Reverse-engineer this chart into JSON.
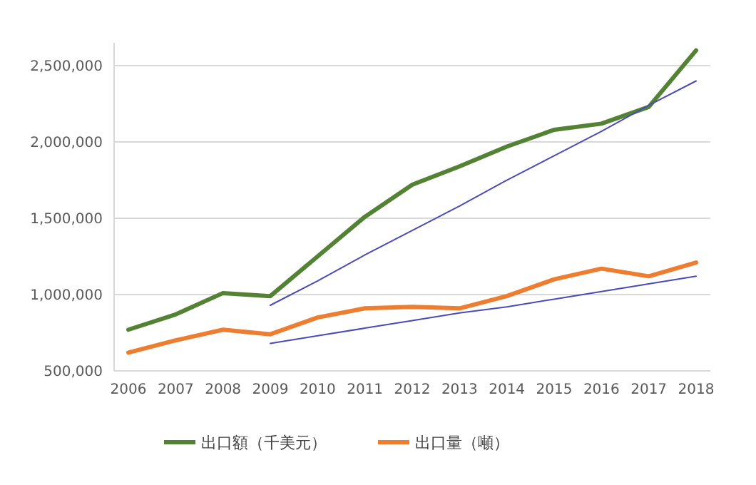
{
  "chart_data": {
    "type": "line",
    "categories": [
      "2006",
      "2007",
      "2008",
      "2009",
      "2010",
      "2011",
      "2012",
      "2013",
      "2014",
      "2015",
      "2016",
      "2017",
      "2018"
    ],
    "series": [
      {
        "name": "出口額（千美元）",
        "color": "#548235",
        "values": [
          770000,
          870000,
          1010000,
          990000,
          1250000,
          1510000,
          1720000,
          1840000,
          1970000,
          2080000,
          2120000,
          2230000,
          2600000
        ]
      },
      {
        "name": "出口量（噸）",
        "color": "#ed7d31",
        "values": [
          620000,
          700000,
          770000,
          740000,
          850000,
          910000,
          920000,
          910000,
          990000,
          1100000,
          1170000,
          1120000,
          1210000
        ]
      },
      {
        "type": "line",
        "color": "#4b4bb8",
        "values": [
          null,
          null,
          null,
          930000,
          1090000,
          1260000,
          1420000,
          1580000,
          1750000,
          1910000,
          2070000,
          2240000,
          2400000
        ]
      },
      {
        "type": "line",
        "color": "#4b4bb8",
        "values": [
          null,
          null,
          null,
          680000,
          730000,
          780000,
          830000,
          880000,
          920000,
          970000,
          1020000,
          1070000,
          1120000
        ]
      }
    ],
    "ylim": [
      500000,
      2650000
    ],
    "yticks": [
      {
        "value": 500000,
        "label": "500,000"
      },
      {
        "value": 1000000,
        "label": "1,000,000"
      },
      {
        "value": 1500000,
        "label": "1,500,000"
      },
      {
        "value": 2000000,
        "label": "2,000,000"
      },
      {
        "value": 2500000,
        "label": "2,500,000"
      }
    ],
    "grid": "y",
    "legend": "bottom",
    "marker": "none",
    "line_style": "solid"
  }
}
